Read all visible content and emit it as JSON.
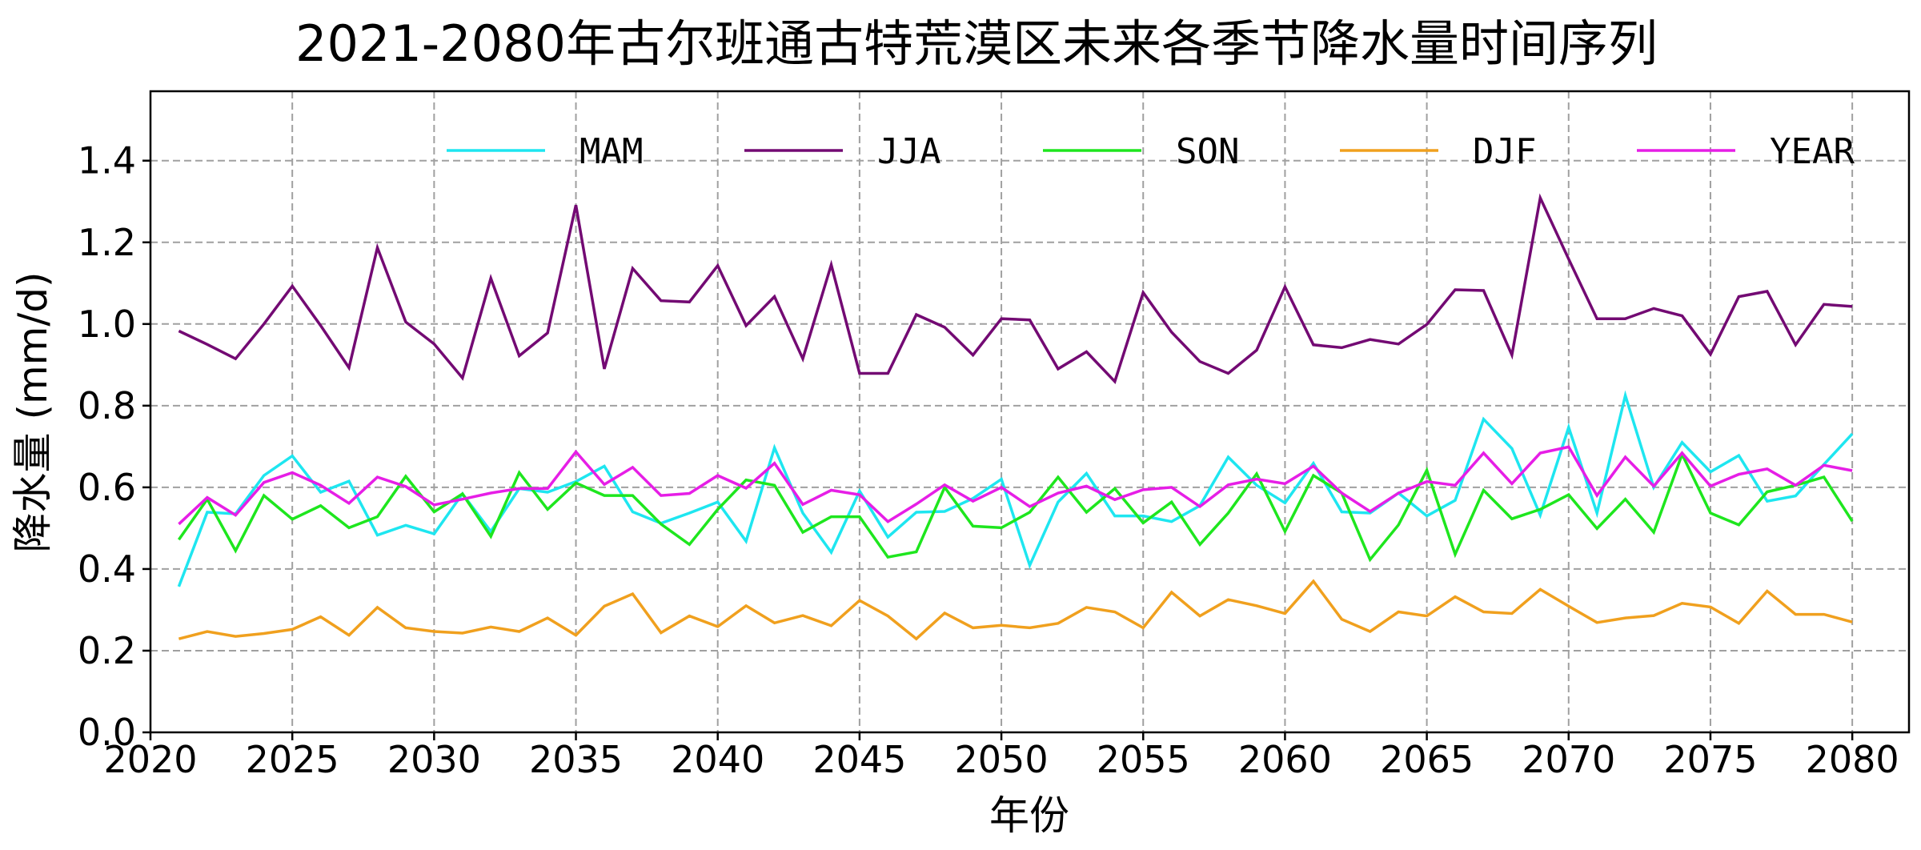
{
  "chart_data": {
    "type": "line",
    "title": "2021-2080年古尔班通古特荒漠区未来各季节降水量时间序列",
    "xlabel": "年份",
    "ylabel": "降水量 (mm/d)",
    "xlim": [
      2020,
      2082
    ],
    "ylim": [
      0,
      1.57
    ],
    "xticks": [
      2020,
      2025,
      2030,
      2035,
      2040,
      2045,
      2050,
      2055,
      2060,
      2065,
      2070,
      2075,
      2080
    ],
    "xtick_labels": [
      "2020",
      "2025",
      "2030",
      "2035",
      "2040",
      "2045",
      "2050",
      "2055",
      "2060",
      "2065",
      "2070",
      "2075",
      "2080"
    ],
    "yticks": [
      0.0,
      0.2,
      0.4,
      0.6,
      0.8,
      1.0,
      1.2,
      1.4
    ],
    "ytick_labels": [
      "0.0",
      "0.2",
      "0.4",
      "0.6",
      "0.8",
      "1.0",
      "1.2",
      "1.4"
    ],
    "grid": true,
    "legend_position": "top",
    "x": [
      2021,
      2022,
      2023,
      2024,
      2025,
      2026,
      2027,
      2028,
      2029,
      2030,
      2031,
      2032,
      2033,
      2034,
      2035,
      2036,
      2037,
      2038,
      2039,
      2040,
      2041,
      2042,
      2043,
      2044,
      2045,
      2046,
      2047,
      2048,
      2049,
      2050,
      2051,
      2052,
      2053,
      2054,
      2055,
      2056,
      2057,
      2058,
      2059,
      2060,
      2061,
      2062,
      2063,
      2064,
      2065,
      2066,
      2067,
      2068,
      2069,
      2070,
      2071,
      2072,
      2073,
      2074,
      2075,
      2076,
      2077,
      2078,
      2079,
      2080
    ],
    "series": [
      {
        "name": "MAM",
        "color": "#1ee6f0",
        "values": [
          0.357,
          0.539,
          0.535,
          0.629,
          0.677,
          0.588,
          0.615,
          0.483,
          0.507,
          0.486,
          0.584,
          0.492,
          0.597,
          0.588,
          0.614,
          0.652,
          0.54,
          0.512,
          0.537,
          0.564,
          0.468,
          0.697,
          0.537,
          0.441,
          0.591,
          0.478,
          0.539,
          0.541,
          0.573,
          0.62,
          0.409,
          0.564,
          0.634,
          0.53,
          0.53,
          0.516,
          0.555,
          0.674,
          0.605,
          0.562,
          0.659,
          0.54,
          0.537,
          0.586,
          0.53,
          0.568,
          0.767,
          0.695,
          0.532,
          0.747,
          0.537,
          0.825,
          0.6,
          0.71,
          0.638,
          0.678,
          0.566,
          0.579,
          0.656,
          0.731
        ]
      },
      {
        "name": "JJA",
        "color": "#730a73",
        "values": [
          0.983,
          0.95,
          0.915,
          1.0,
          1.093,
          0.996,
          0.893,
          1.187,
          1.005,
          0.951,
          0.868,
          1.112,
          0.922,
          0.978,
          1.291,
          0.89,
          1.136,
          1.057,
          1.054,
          1.143,
          0.996,
          1.067,
          0.915,
          1.145,
          0.879,
          0.879,
          1.023,
          0.992,
          0.924,
          1.013,
          1.01,
          0.89,
          0.932,
          0.859,
          1.077,
          0.98,
          0.908,
          0.879,
          0.936,
          1.091,
          0.949,
          0.942,
          0.962,
          0.951,
          0.999,
          1.084,
          1.082,
          0.924,
          1.309,
          1.159,
          1.013,
          1.013,
          1.038,
          1.02,
          0.926,
          1.067,
          1.08,
          0.949,
          1.048,
          1.043
        ]
      },
      {
        "name": "SON",
        "color": "#1ee61e",
        "values": [
          0.472,
          0.571,
          0.445,
          0.58,
          0.522,
          0.555,
          0.501,
          0.528,
          0.627,
          0.54,
          0.584,
          0.48,
          0.636,
          0.546,
          0.611,
          0.58,
          0.58,
          0.51,
          0.46,
          0.546,
          0.618,
          0.605,
          0.49,
          0.528,
          0.528,
          0.429,
          0.442,
          0.6,
          0.505,
          0.501,
          0.539,
          0.625,
          0.539,
          0.597,
          0.513,
          0.564,
          0.46,
          0.537,
          0.633,
          0.492,
          0.629,
          0.586,
          0.423,
          0.508,
          0.642,
          0.436,
          0.593,
          0.523,
          0.546,
          0.582,
          0.499,
          0.571,
          0.49,
          0.681,
          0.537,
          0.508,
          0.589,
          0.605,
          0.625,
          0.517
        ]
      },
      {
        "name": "DJF",
        "color": "#f0a01e",
        "values": [
          0.229,
          0.247,
          0.235,
          0.242,
          0.252,
          0.283,
          0.238,
          0.306,
          0.256,
          0.247,
          0.243,
          0.258,
          0.247,
          0.28,
          0.238,
          0.309,
          0.339,
          0.244,
          0.285,
          0.259,
          0.31,
          0.268,
          0.286,
          0.261,
          0.323,
          0.285,
          0.229,
          0.292,
          0.256,
          0.262,
          0.256,
          0.267,
          0.306,
          0.295,
          0.256,
          0.343,
          0.285,
          0.325,
          0.31,
          0.291,
          0.37,
          0.277,
          0.247,
          0.295,
          0.285,
          0.332,
          0.295,
          0.291,
          0.35,
          0.309,
          0.269,
          0.28,
          0.286,
          0.316,
          0.307,
          0.267,
          0.346,
          0.289,
          0.289,
          0.27
        ]
      },
      {
        "name": "YEAR",
        "color": "#e61ee6",
        "values": [
          0.51,
          0.575,
          0.532,
          0.612,
          0.636,
          0.605,
          0.561,
          0.625,
          0.602,
          0.557,
          0.571,
          0.586,
          0.597,
          0.597,
          0.687,
          0.607,
          0.649,
          0.58,
          0.585,
          0.629,
          0.598,
          0.659,
          0.558,
          0.593,
          0.582,
          0.516,
          0.559,
          0.606,
          0.566,
          0.6,
          0.553,
          0.586,
          0.603,
          0.57,
          0.594,
          0.6,
          0.553,
          0.606,
          0.62,
          0.609,
          0.652,
          0.586,
          0.541,
          0.586,
          0.614,
          0.605,
          0.684,
          0.609,
          0.684,
          0.699,
          0.58,
          0.674,
          0.603,
          0.684,
          0.603,
          0.632,
          0.645,
          0.605,
          0.654,
          0.641
        ]
      }
    ]
  }
}
